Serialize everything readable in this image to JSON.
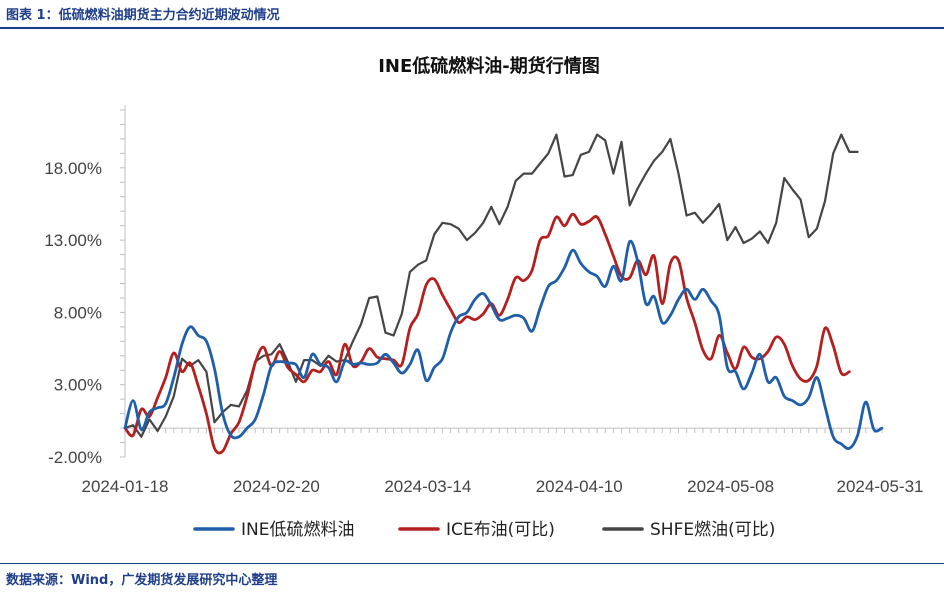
{
  "header": {
    "caption": "图表 1：低硫燃料油期货主力合约近期波动情况"
  },
  "footer": {
    "source": "数据来源：Wind，广发期货发展研究中心整理"
  },
  "chart_data": {
    "type": "line",
    "title": "INE低硫燃料油-期货行情图",
    "xlabel": "",
    "ylabel": "",
    "ylim": [
      -2.0,
      22.0
    ],
    "yticks": [
      "-2.00%",
      "3.00%",
      "8.00%",
      "13.00%",
      "18.00%"
    ],
    "ytick_values": [
      -2,
      3,
      8,
      13,
      18
    ],
    "xticks": [
      "2024-01-18",
      "2024-02-20",
      "2024-03-14",
      "2024-04-10",
      "2024-05-08",
      "2024-05-31"
    ],
    "legend_position": "bottom",
    "grid": false,
    "series": [
      {
        "name": "INE低硫燃料油",
        "color": "#1f5ea8",
        "values": [
          0.0,
          1.9,
          -0.1,
          1.1,
          1.4,
          1.7,
          3.5,
          5.8,
          7.0,
          6.4,
          6.0,
          4.1,
          1.0,
          -0.5,
          -0.6,
          0.0,
          0.6,
          2.3,
          4.3,
          4.6,
          4.5,
          4.4,
          3.5,
          5.1,
          4.4,
          4.2,
          3.2,
          4.6,
          4.4,
          4.5,
          4.4,
          4.5,
          5.1,
          4.5,
          3.8,
          4.4,
          5.4,
          3.3,
          4.2,
          4.8,
          6.6,
          7.7,
          8.0,
          8.9,
          9.3,
          8.5,
          7.5,
          7.6,
          7.8,
          7.6,
          6.7,
          8.3,
          9.8,
          10.2,
          11.1,
          12.3,
          11.4,
          10.8,
          10.5,
          9.8,
          11.2,
          10.2,
          12.9,
          11.5,
          8.6,
          9.1,
          7.3,
          7.8,
          8.9,
          9.6,
          8.9,
          9.6,
          8.8,
          7.8,
          4.2,
          3.9,
          2.7,
          3.8,
          5.1,
          3.2,
          3.5,
          2.2,
          1.9,
          1.6,
          2.1,
          3.5,
          1.5,
          -0.6,
          -1.1,
          -1.4,
          -0.5,
          1.8,
          -0.1,
          0.0
        ]
      },
      {
        "name": "ICE布油(可比)",
        "color": "#b3201f",
        "values": [
          0.0,
          -0.5,
          1.3,
          0.8,
          2.1,
          3.5,
          5.2,
          3.9,
          4.5,
          2.9,
          1.0,
          -1.4,
          -1.6,
          -0.4,
          0.4,
          2.2,
          4.5,
          5.6,
          4.3,
          5.3,
          4.2,
          3.7,
          3.2,
          4.0,
          3.9,
          4.6,
          3.7,
          5.8,
          4.3,
          4.6,
          5.5,
          4.9,
          4.8,
          4.7,
          4.4,
          6.9,
          7.9,
          9.9,
          10.3,
          9.2,
          8.2,
          7.3,
          7.7,
          7.5,
          7.9,
          8.6,
          7.8,
          8.9,
          10.4,
          10.2,
          10.9,
          13.0,
          13.3,
          14.6,
          14.0,
          14.8,
          14.1,
          14.3,
          14.6,
          13.4,
          11.9,
          10.5,
          10.4,
          11.6,
          10.6,
          11.9,
          8.6,
          11.4,
          11.6,
          9.0,
          7.3,
          5.4,
          4.8,
          6.4,
          5.2,
          4.1,
          5.6,
          4.9,
          4.8,
          5.3,
          6.3,
          5.8,
          4.3,
          3.4,
          3.3,
          4.3,
          6.9,
          5.7,
          3.8,
          3.9
        ]
      },
      {
        "name": "SHFE燃油(可比)",
        "color": "#454545",
        "values": [
          0.0,
          0.2,
          -0.6,
          0.6,
          -0.2,
          0.8,
          2.2,
          4.8,
          4.3,
          4.7,
          3.9,
          0.4,
          1.1,
          1.6,
          1.5,
          2.6,
          4.6,
          5.0,
          5.1,
          5.8,
          4.6,
          3.2,
          4.7,
          4.7,
          4.3,
          5.0,
          4.6,
          4.7,
          6.0,
          7.2,
          9.0,
          9.1,
          6.6,
          6.4,
          7.9,
          10.8,
          11.3,
          11.6,
          13.4,
          14.2,
          14.1,
          13.8,
          13.0,
          13.5,
          14.2,
          15.3,
          14.1,
          15.3,
          17.1,
          17.6,
          17.6,
          18.3,
          19.0,
          20.3,
          17.4,
          17.5,
          18.9,
          19.1,
          20.3,
          19.9,
          17.6,
          19.8,
          15.4,
          16.6,
          17.6,
          18.5,
          19.1,
          20.0,
          17.6,
          14.7,
          14.9,
          14.2,
          14.8,
          15.5,
          13.0,
          13.9,
          12.8,
          13.1,
          13.6,
          12.8,
          14.2,
          17.3,
          16.5,
          15.8,
          13.2,
          13.8,
          15.7,
          19.0,
          20.3,
          19.1,
          19.1
        ]
      }
    ]
  }
}
